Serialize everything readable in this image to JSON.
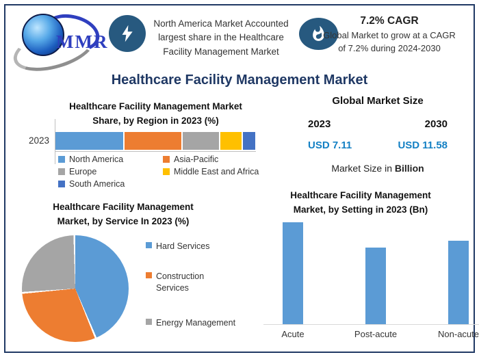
{
  "brand": {
    "logo_text": "MMR"
  },
  "header": {
    "highlight_text": "North America Market Accounted largest share in the Healthcare Facility Management Market",
    "cagr_title": "7.2% CAGR",
    "cagr_description": "Global Market to grow at a CAGR of 7.2% during 2024-2030"
  },
  "page_title": "Healthcare Facility Management Market",
  "market_size_panel": {
    "title": "Global Market Size",
    "year_left": "2023",
    "year_right": "2030",
    "value_left": "USD 7.11",
    "value_right": "USD 11.58",
    "value_color": "#1380C4",
    "note_prefix": "Market Size in ",
    "note_bold": "Billion"
  },
  "chart_data": [
    {
      "id": "region_share",
      "type": "bar",
      "subtype": "horizontal-stacked",
      "title": "Healthcare Facility Management Market Share, by Region in 2023 (%)",
      "title_lines": [
        "Healthcare Facility Management Market",
        "Share, by Region in 2023 (%)"
      ],
      "categories": [
        "2023"
      ],
      "series": [
        {
          "name": "North America",
          "value": 34,
          "color": "#5B9BD5"
        },
        {
          "name": "Asia-Pacific",
          "value": 29,
          "color": "#ED7D31"
        },
        {
          "name": "Europe",
          "value": 19,
          "color": "#A5A5A5"
        },
        {
          "name": "Middle East and Africa",
          "value": 11,
          "color": "#FFC000"
        },
        {
          "name": "South America",
          "value": 7,
          "color": "#4472C4"
        }
      ],
      "unit": "%",
      "values_estimated_from_pixels": true,
      "legend_position": "bottom",
      "grid": false
    },
    {
      "id": "service_share",
      "type": "pie",
      "title": "Healthcare Facility Management Market, by Service In 2023 (%)",
      "title_lines": [
        "Healthcare Facility Management",
        "Market, by Service In 2023 (%)"
      ],
      "slices": [
        {
          "name": "Hard Services",
          "value": 44,
          "color": "#5B9BD5"
        },
        {
          "name": "Construction Services",
          "value": 30,
          "color": "#ED7D31"
        },
        {
          "name": "Energy Management",
          "value": 26,
          "color": "#A5A5A5"
        }
      ],
      "unit": "%",
      "values_estimated_from_pixels": true,
      "legend_position": "right",
      "start_angle_deg": 0
    },
    {
      "id": "setting_size",
      "type": "bar",
      "title": "Healthcare Facility Management Market, by Setting in 2023 (Bn)",
      "title_lines": [
        "Healthcare Facility Management",
        "Market, by Setting in 2023 (Bn)"
      ],
      "categories": [
        "Acute",
        "Post-acute",
        "Non-acute"
      ],
      "values": [
        2.8,
        2.1,
        2.3
      ],
      "unit": "USD Bn",
      "values_estimated_from_pixels": true,
      "bar_color": "#5B9BD5",
      "axis_tick_labels_shown": false,
      "data_labels_shown": false,
      "grid": false
    }
  ]
}
